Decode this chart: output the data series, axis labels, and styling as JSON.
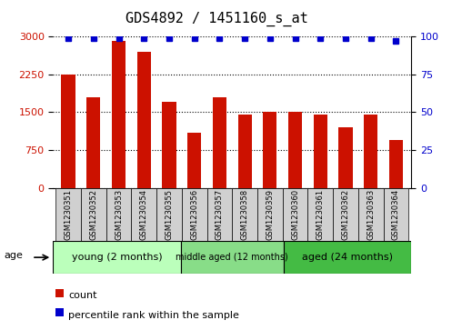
{
  "title": "GDS4892 / 1451160_s_at",
  "samples": [
    "GSM1230351",
    "GSM1230352",
    "GSM1230353",
    "GSM1230354",
    "GSM1230355",
    "GSM1230356",
    "GSM1230357",
    "GSM1230358",
    "GSM1230359",
    "GSM1230360",
    "GSM1230361",
    "GSM1230362",
    "GSM1230363",
    "GSM1230364"
  ],
  "counts": [
    2250,
    1800,
    2900,
    2700,
    1700,
    1100,
    1800,
    1450,
    1500,
    1500,
    1450,
    1200,
    1450,
    950
  ],
  "percentiles": [
    99,
    99,
    99,
    99,
    99,
    99,
    99,
    99,
    99,
    99,
    99,
    99,
    99,
    97
  ],
  "bar_color": "#cc1100",
  "percentile_color": "#0000cc",
  "ylim_left": [
    0,
    3000
  ],
  "ylim_right": [
    0,
    100
  ],
  "yticks_left": [
    0,
    750,
    1500,
    2250,
    3000
  ],
  "yticks_right": [
    0,
    25,
    50,
    75,
    100
  ],
  "groups": [
    {
      "label": "young (2 months)",
      "start": 0,
      "end": 5,
      "color": "#bbffbb"
    },
    {
      "label": "middle aged (12 months)",
      "start": 5,
      "end": 9,
      "color": "#88dd88"
    },
    {
      "label": "aged (24 months)",
      "start": 9,
      "end": 14,
      "color": "#44bb44"
    }
  ],
  "age_label": "age",
  "legend_count_label": "count",
  "legend_percentile_label": "percentile rank within the sample",
  "background_color": "#ffffff",
  "tick_label_bg": "#d0d0d0",
  "grid_linestyle": "dotted",
  "title_fontsize": 11,
  "tick_fontsize": 8,
  "sample_fontsize": 6,
  "group_fontsize": 8,
  "legend_fontsize": 8
}
